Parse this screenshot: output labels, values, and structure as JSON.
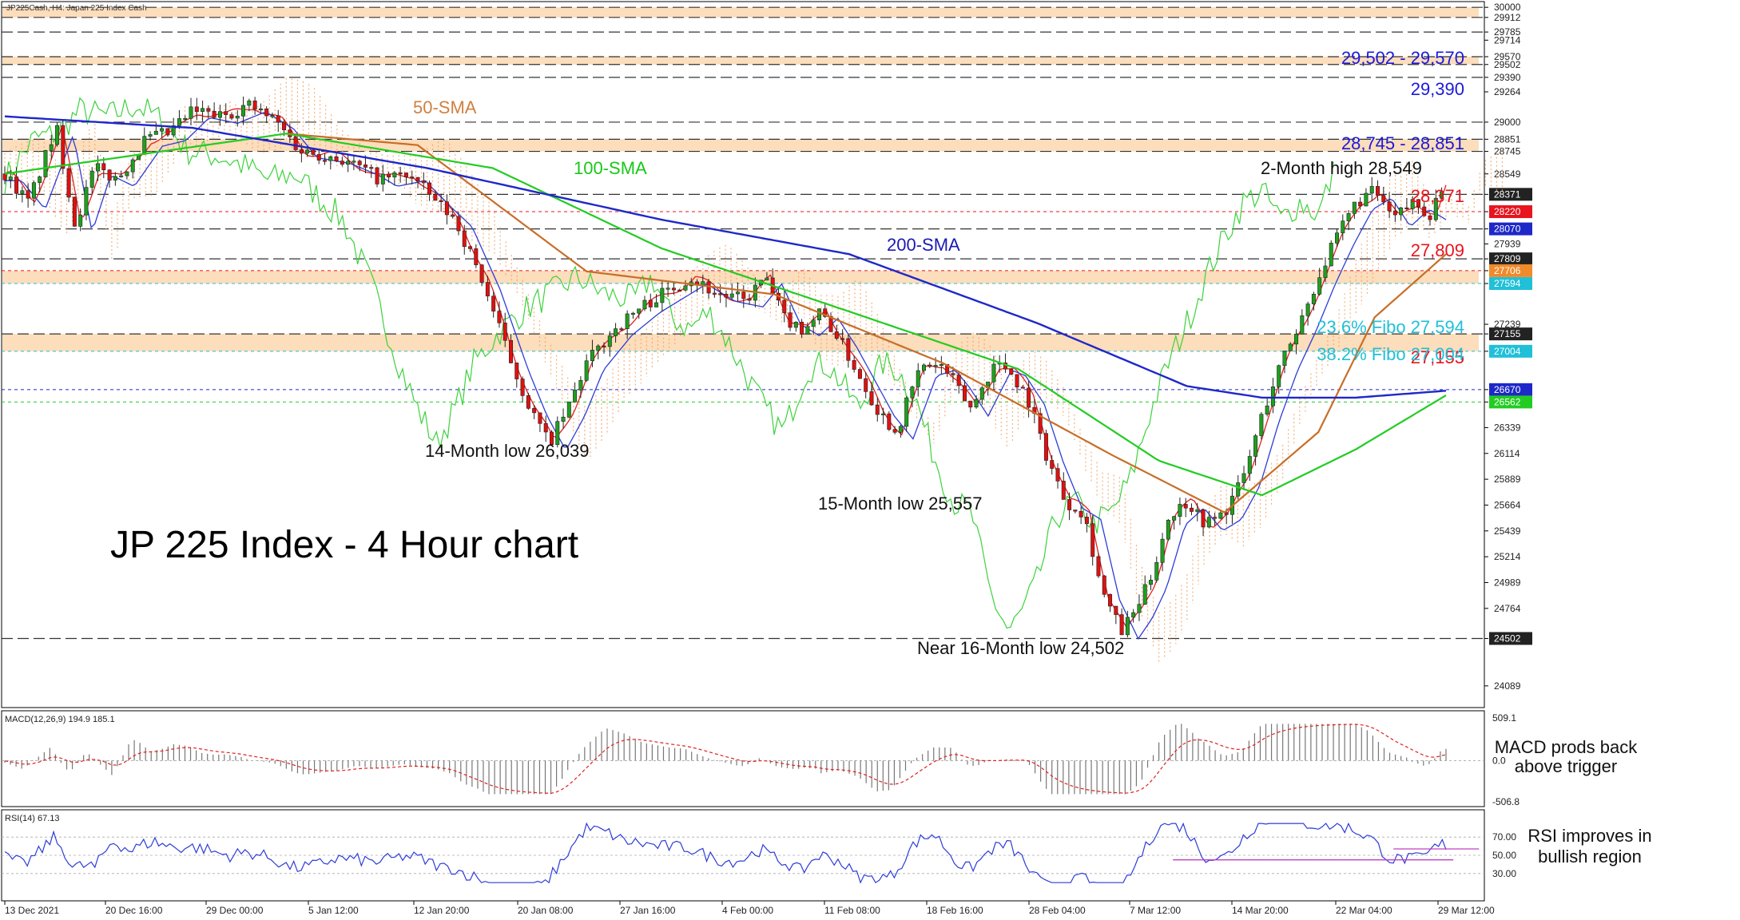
{
  "header": {
    "symbol_info": "JP225Cash, H4:  Japan 225 Index Cash"
  },
  "title": "JP 225 Index - 4 Hour chart",
  "chart_data": {
    "type": "candlestick",
    "title": "JP 225 Index - 4 Hour chart",
    "y_ticks": [
      30000,
      29912,
      29785,
      29714,
      29570,
      29502,
      29390,
      29264,
      29000,
      28851,
      28745,
      28549,
      28371,
      28220,
      28070,
      27939,
      27809,
      27706,
      27594,
      27239,
      27155,
      27004,
      26670,
      26562,
      26339,
      26114,
      25889,
      25664,
      25439,
      25214,
      24989,
      24764,
      24502,
      24089
    ],
    "ylim": [
      23900,
      30050
    ],
    "x_ticks": [
      "13 Dec 2021",
      "20 Dec 16:00",
      "29 Dec 00:00",
      "5 Jan 12:00",
      "12 Jan 20:00",
      "20 Jan 08:00",
      "27 Jan 16:00",
      "4 Feb 00:00",
      "11 Feb 08:00",
      "18 Feb 16:00",
      "28 Feb 04:00",
      "7 Mar 12:00",
      "14 Mar 20:00",
      "22 Mar 04:00",
      "29 Mar 12:00"
    ],
    "price_path": [
      [
        0,
        28550
      ],
      [
        25,
        28300
      ],
      [
        55,
        28950
      ],
      [
        75,
        28100
      ],
      [
        95,
        28600
      ],
      [
        120,
        28500
      ],
      [
        150,
        28850
      ],
      [
        175,
        28900
      ],
      [
        200,
        29100
      ],
      [
        230,
        29050
      ],
      [
        260,
        29150
      ],
      [
        290,
        29000
      ],
      [
        315,
        28750
      ],
      [
        350,
        28700
      ],
      [
        380,
        28600
      ],
      [
        400,
        28500
      ],
      [
        430,
        28550
      ],
      [
        460,
        28300
      ],
      [
        480,
        28150
      ],
      [
        510,
        27600
      ],
      [
        540,
        26900
      ],
      [
        560,
        26500
      ],
      [
        580,
        26200
      ],
      [
        600,
        26500
      ],
      [
        620,
        26900
      ],
      [
        650,
        27200
      ],
      [
        680,
        27400
      ],
      [
        700,
        27500
      ],
      [
        730,
        27650
      ],
      [
        760,
        27500
      ],
      [
        790,
        27450
      ],
      [
        810,
        27650
      ],
      [
        830,
        27300
      ],
      [
        850,
        27200
      ],
      [
        870,
        27350
      ],
      [
        890,
        27100
      ],
      [
        910,
        26800
      ],
      [
        930,
        26500
      ],
      [
        950,
        26300
      ],
      [
        975,
        26850
      ],
      [
        995,
        26900
      ],
      [
        1010,
        26750
      ],
      [
        1030,
        26500
      ],
      [
        1055,
        26900
      ],
      [
        1070,
        26850
      ],
      [
        1090,
        26600
      ],
      [
        1110,
        26100
      ],
      [
        1130,
        25700
      ],
      [
        1150,
        25600
      ],
      [
        1170,
        24900
      ],
      [
        1190,
        24560
      ],
      [
        1205,
        24740
      ],
      [
        1220,
        25000
      ],
      [
        1240,
        25550
      ],
      [
        1260,
        25700
      ],
      [
        1280,
        25500
      ],
      [
        1300,
        25600
      ],
      [
        1320,
        25900
      ],
      [
        1340,
        26450
      ],
      [
        1360,
        26900
      ],
      [
        1380,
        27250
      ],
      [
        1400,
        27650
      ],
      [
        1420,
        28000
      ],
      [
        1440,
        28300
      ],
      [
        1460,
        28400
      ],
      [
        1480,
        28150
      ],
      [
        1500,
        28300
      ],
      [
        1520,
        28200
      ],
      [
        1536,
        28549
      ]
    ],
    "series": [
      {
        "name": "50-SMA",
        "values": [
          [
            300,
            28900
          ],
          [
            440,
            28800
          ],
          [
            620,
            27700
          ],
          [
            820,
            27500
          ],
          [
            1000,
            26900
          ],
          [
            1180,
            26100
          ],
          [
            1300,
            25600
          ],
          [
            1400,
            26300
          ],
          [
            1460,
            27300
          ],
          [
            1536,
            27850
          ]
        ]
      },
      {
        "name": "100-SMA",
        "values": [
          [
            0,
            28550
          ],
          [
            300,
            28900
          ],
          [
            520,
            28600
          ],
          [
            700,
            27900
          ],
          [
            900,
            27350
          ],
          [
            1080,
            26850
          ],
          [
            1230,
            26050
          ],
          [
            1340,
            25750
          ],
          [
            1440,
            26150
          ],
          [
            1536,
            26620
          ]
        ]
      },
      {
        "name": "200-SMA",
        "values": [
          [
            0,
            29050
          ],
          [
            200,
            28950
          ],
          [
            450,
            28600
          ],
          [
            700,
            28150
          ],
          [
            900,
            27850
          ],
          [
            1100,
            27250
          ],
          [
            1260,
            26700
          ],
          [
            1340,
            26600
          ],
          [
            1440,
            26600
          ],
          [
            1536,
            26660
          ]
        ]
      }
    ],
    "levels": [
      {
        "value": 29570,
        "label": "29,502 - 29,570",
        "color": "#1a1adc"
      },
      {
        "value": 29390,
        "label": "29,390",
        "color": "#1a1adc"
      },
      {
        "value": 28851,
        "label": "28,745 - 28,851",
        "color": "#1a1adc"
      },
      {
        "value": 28371,
        "label": "28,371",
        "color": "#e8141e"
      },
      {
        "value": 27809,
        "label": "27,809",
        "color": "#e8141e"
      },
      {
        "value": 27594,
        "label": "23.6% Fibo 27,594",
        "color": "#20c0d8"
      },
      {
        "value": 27155,
        "label": "27,155",
        "color": "#e8141e"
      },
      {
        "value": 27004,
        "label": "38.2% Fibo 27,004",
        "color": "#20c0d8"
      }
    ],
    "zones": [
      {
        "from": 29912,
        "to": 30000
      },
      {
        "from": 29502,
        "to": 29570
      },
      {
        "from": 28745,
        "to": 28851
      },
      {
        "from": 27594,
        "to": 27706
      },
      {
        "from": 27004,
        "to": 27155
      }
    ],
    "annotations": [
      {
        "text": "50-SMA",
        "color": "#d08040"
      },
      {
        "text": "100-SMA",
        "color": "#18c818"
      },
      {
        "text": "200-SMA",
        "color": "#1a1ab4"
      },
      {
        "text": "2-Month high 28,549",
        "color": "#111111"
      },
      {
        "text": "14-Month low 26,039",
        "color": "#111111"
      },
      {
        "text": "15-Month low 25,557",
        "color": "#111111"
      },
      {
        "text": "Near 16-Month low 24,502",
        "color": "#111111"
      }
    ]
  },
  "macd": {
    "label": "MACD(12,26,9) 194.9 185.1",
    "ticks": [
      "509.1",
      "0.0",
      "-506.8"
    ],
    "note_line1": "MACD prods back",
    "note_line2": "above trigger"
  },
  "rsi": {
    "label": "RSI(14) 67.13",
    "ticks": [
      "70.00",
      "50.00",
      "30.00"
    ],
    "note_line1": "RSI improves in",
    "note_line2": "bullish region"
  },
  "colors": {
    "bull": "#1ea01e",
    "bear": "#e01010",
    "sma50": "#c86e28",
    "sma100": "#22cc22",
    "sma200": "#1e28c8",
    "zone": "#fbd7b0"
  }
}
